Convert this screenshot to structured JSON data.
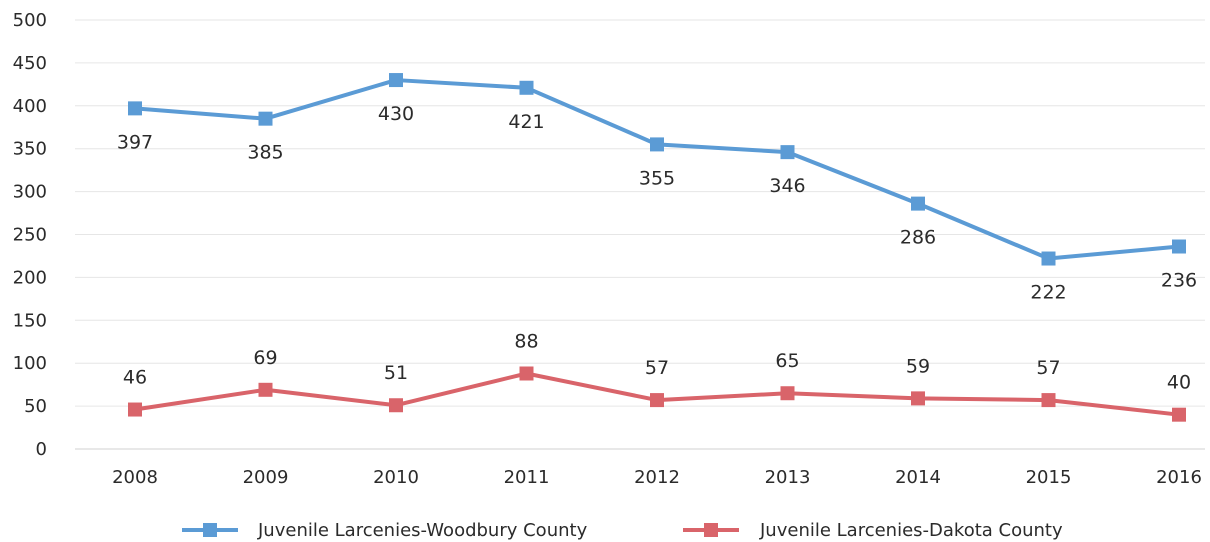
{
  "chart_data": {
    "type": "line",
    "categories": [
      "2008",
      "2009",
      "2010",
      "2011",
      "2012",
      "2013",
      "2014",
      "2015",
      "2016"
    ],
    "ylim": [
      0,
      500
    ],
    "yticks": [
      0,
      50,
      100,
      150,
      200,
      250,
      300,
      350,
      400,
      450,
      500
    ],
    "grid": true,
    "legend_position": "bottom",
    "series": [
      {
        "name": "Juvenile Larcenies-Woodbury County",
        "values": [
          397,
          385,
          430,
          421,
          355,
          346,
          286,
          222,
          236
        ],
        "color": "#5b9bd5",
        "marker": "square",
        "label_position": "below"
      },
      {
        "name": "Juvenile Larcenies-Dakota County",
        "values": [
          46,
          69,
          51,
          88,
          57,
          65,
          59,
          57,
          40
        ],
        "color": "#d9646a",
        "marker": "square",
        "label_position": "above"
      }
    ]
  }
}
